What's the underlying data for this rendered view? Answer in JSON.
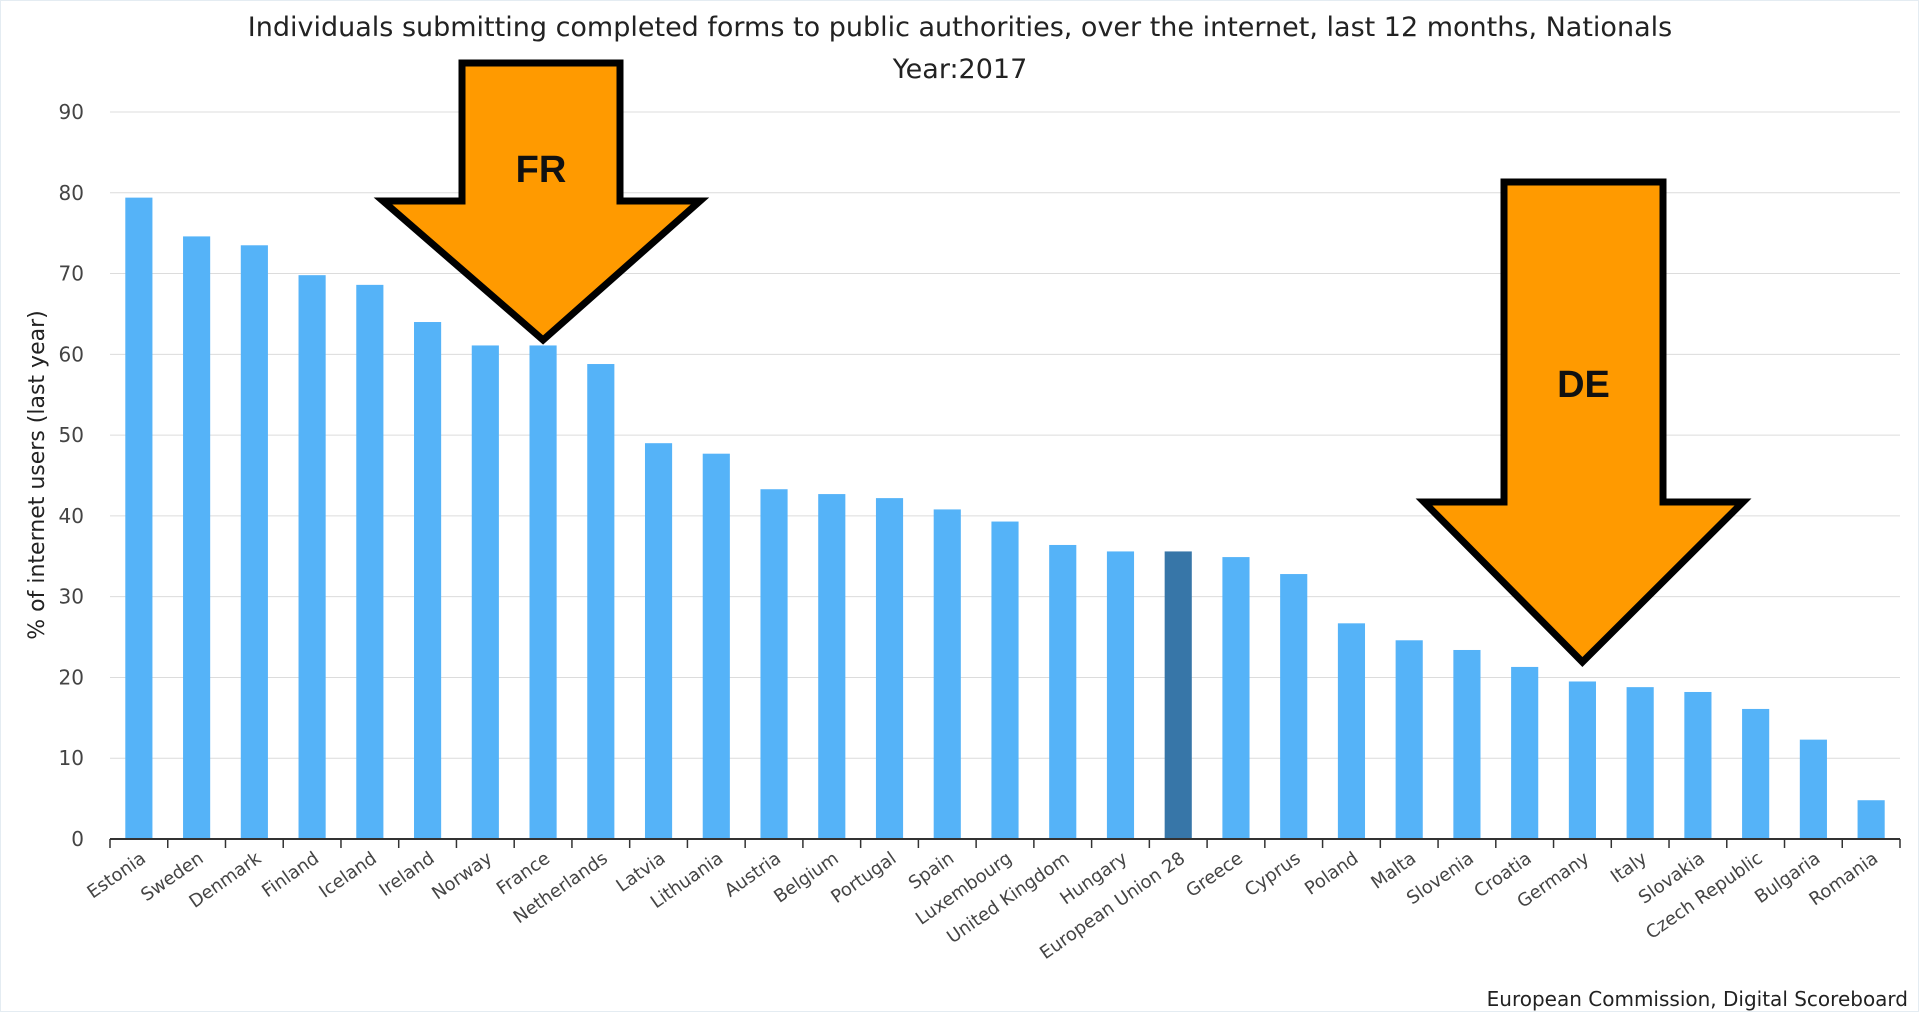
{
  "chart_data": {
    "type": "bar",
    "title": "Individuals submitting completed forms to public authorities, over the internet, last 12 months, Nationals",
    "subtitle": "Year:2017",
    "ylabel": "% of internet users (last year)",
    "xlabel": "",
    "ylim": [
      0,
      90
    ],
    "yticks": [
      0,
      10,
      20,
      30,
      40,
      50,
      60,
      70,
      80,
      90
    ],
    "grid": true,
    "categories": [
      "Estonia",
      "Sweden",
      "Denmark",
      "Finland",
      "Iceland",
      "Ireland",
      "Norway",
      "France",
      "Netherlands",
      "Latvia",
      "Lithuania",
      "Austria",
      "Belgium",
      "Portugal",
      "Spain",
      "Luxembourg",
      "United Kingdom",
      "Hungary",
      "European Union 28",
      "Greece",
      "Cyprus",
      "Poland",
      "Malta",
      "Slovenia",
      "Croatia",
      "Germany",
      "Italy",
      "Slovakia",
      "Czech Republic",
      "Bulgaria",
      "Romania"
    ],
    "values": [
      79.4,
      74.6,
      73.5,
      69.8,
      68.6,
      64.0,
      61.1,
      61.1,
      58.8,
      49.0,
      47.7,
      43.3,
      42.7,
      42.2,
      40.8,
      39.3,
      36.4,
      35.6,
      35.6,
      34.9,
      32.8,
      26.7,
      24.6,
      23.4,
      21.3,
      19.5,
      18.8,
      18.2,
      16.1,
      12.3,
      4.8
    ],
    "highlight_category": "European Union 28",
    "bar_color": "#55b3f8",
    "highlight_color": "#3776a8",
    "annotations": [
      {
        "label": "FR",
        "points_to": "France",
        "color": "#ff9a00"
      },
      {
        "label": "DE",
        "points_to": "Germany",
        "color": "#ff9a00"
      }
    ],
    "source": "European Commission, Digital Scoreboard"
  }
}
